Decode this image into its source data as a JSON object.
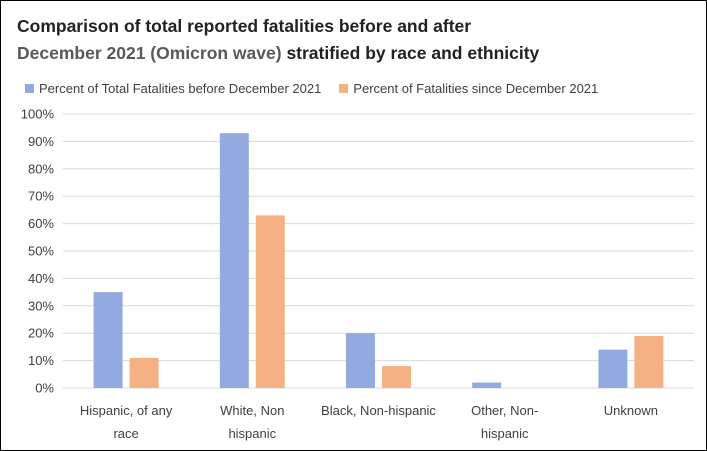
{
  "title": {
    "line1": "Comparison of total reported fatalities before and after",
    "line2_gray": "December 2021 (Omicron wave)",
    "line2_rest": " stratified by race and ethnicity"
  },
  "colors": {
    "series1": "#92aadf",
    "series2": "#f5b183",
    "grid": "#d9d9d9",
    "text": "#404040"
  },
  "chart_data": {
    "type": "bar",
    "title": "Comparison of total reported fatalities before and after December 2021 (Omicron wave) stratified by race and ethnicity",
    "categories": [
      [
        "Hispanic, of any",
        "race"
      ],
      [
        "White, Non",
        "hispanic"
      ],
      [
        "Black, Non-hispanic"
      ],
      [
        "Other, Non-",
        "hispanic"
      ],
      [
        "Unknown"
      ]
    ],
    "series": [
      {
        "name": "Percent of Total Fatalities before December 2021",
        "values": [
          35,
          93,
          20,
          2,
          14
        ]
      },
      {
        "name": "Percent of Fatalities since December 2021",
        "values": [
          11,
          63,
          8,
          0,
          19
        ]
      }
    ],
    "ylim": [
      0,
      100
    ],
    "yticks": [
      0,
      10,
      20,
      30,
      40,
      50,
      60,
      70,
      80,
      90,
      100
    ],
    "ytick_labels": [
      "0%",
      "10%",
      "20%",
      "30%",
      "40%",
      "50%",
      "60%",
      "70%",
      "80%",
      "90%",
      "100%"
    ],
    "grid": true,
    "legend_position": "top-left"
  }
}
